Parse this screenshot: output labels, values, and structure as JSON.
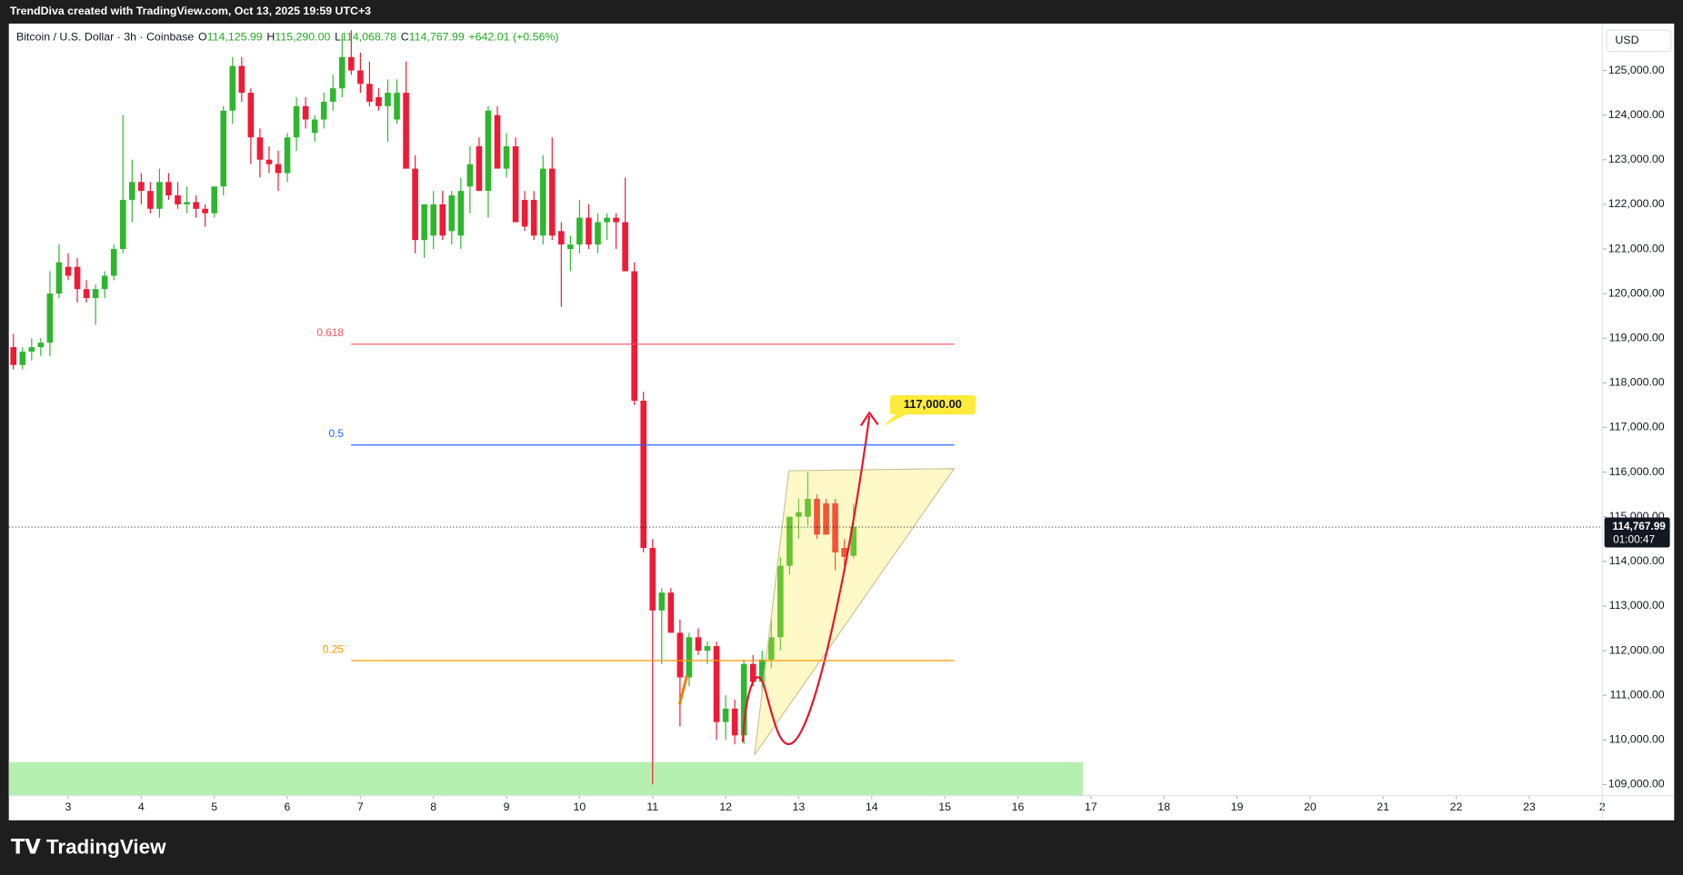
{
  "watermark": "TrendDiva created with TradingView.com, Oct 13, 2025 19:59 UTC+3",
  "footer_logo": "TradingView",
  "chart_data": {
    "type": "candlestick",
    "symbol": "Bitcoin / U.S. Dollar · 3h · Coinbase",
    "ohlc_legend": [
      {
        "key": "O",
        "value": "114,125.99"
      },
      {
        "key": "H",
        "value": "115,290.00"
      },
      {
        "key": "L",
        "value": "114,068.78"
      },
      {
        "key": "C",
        "value": "114,767.99"
      }
    ],
    "change": "+642.01 (+0.56%)",
    "currency": "USD",
    "up_color": "#2fb62f",
    "down_color": "#ef1a37",
    "open": [
      118800,
      118400,
      118700,
      118800,
      118900,
      120000,
      120600,
      120600,
      120100,
      119900,
      120100,
      120400,
      121000,
      122100,
      122500,
      122300,
      121900,
      122500,
      122200,
      122000,
      122050,
      121900,
      121800,
      122400,
      124100,
      125100,
      124500,
      123500,
      123000,
      122900,
      122700,
      123500,
      124200,
      123600,
      123900,
      124300,
      124600,
      125300,
      125000,
      124700,
      124400,
      124200,
      123900,
      124500,
      122800,
      121200,
      121300,
      122000,
      121400,
      121300,
      122400,
      123300,
      122300,
      124000,
      122800,
      123300,
      122100,
      122100,
      121300,
      122800,
      121400,
      121000,
      121100,
      121700,
      121100,
      121600,
      121700,
      121600,
      120500,
      117600,
      114300,
      112900,
      113300,
      112400,
      111400,
      112300,
      112000,
      112100,
      110400,
      110700,
      110100,
      111700,
      111300,
      111800,
      112300,
      113900,
      115000,
      115000,
      115400,
      115300,
      115300,
      114300,
      114125.99
    ],
    "high": [
      119100,
      118800,
      119000,
      119000,
      120500,
      121100,
      120900,
      120800,
      120300,
      120200,
      120500,
      121100,
      124000,
      123000,
      122700,
      122500,
      122800,
      122700,
      122500,
      122400,
      122200,
      122000,
      122400,
      124200,
      125300,
      125300,
      124600,
      123700,
      123300,
      123200,
      123600,
      124400,
      124400,
      124000,
      124500,
      124900,
      125800,
      125900,
      125400,
      125200,
      124600,
      124800,
      124800,
      125200,
      123100,
      122000,
      122300,
      122300,
      122300,
      122600,
      123300,
      123500,
      124200,
      124200,
      123600,
      123500,
      122300,
      122300,
      123100,
      123500,
      121600,
      121300,
      122100,
      122000,
      121800,
      121800,
      121800,
      122600,
      120700,
      117800,
      114500,
      113400,
      113400,
      112700,
      112400,
      112500,
      112200,
      112200,
      111000,
      110900,
      111800,
      111900,
      112000,
      112700,
      114100,
      115000,
      115400,
      116000,
      115500,
      115400,
      115400,
      114500,
      115290
    ],
    "low": [
      118300,
      118300,
      118500,
      118600,
      118600,
      119900,
      120300,
      119800,
      119800,
      119300,
      119900,
      120300,
      120900,
      121600,
      122000,
      121800,
      121700,
      122100,
      121900,
      121800,
      121700,
      121500,
      121700,
      122200,
      123800,
      124300,
      122900,
      122600,
      122700,
      122300,
      122500,
      123200,
      123700,
      123400,
      123700,
      124100,
      124400,
      124900,
      124500,
      124200,
      124100,
      123400,
      123800,
      122800,
      120900,
      120800,
      121000,
      121200,
      121100,
      121000,
      121800,
      122300,
      121700,
      122800,
      122600,
      121600,
      121400,
      121200,
      121100,
      121200,
      119700,
      120500,
      120900,
      121000,
      120900,
      121200,
      121000,
      120500,
      117500,
      114200,
      109000,
      111700,
      112400,
      110300,
      111200,
      111900,
      111700,
      110000,
      110000,
      109900,
      109900,
      111200,
      111100,
      111600,
      112000,
      113700,
      114500,
      114800,
      114500,
      114600,
      113800,
      113900,
      114068.78
    ],
    "close": [
      118400,
      118700,
      118800,
      118900,
      120000,
      120700,
      120400,
      120100,
      119900,
      120100,
      120400,
      121000,
      122100,
      122500,
      122300,
      121900,
      122500,
      122200,
      122000,
      122050,
      121900,
      121800,
      122400,
      124100,
      125100,
      124500,
      123500,
      123000,
      122900,
      122700,
      123500,
      124200,
      123900,
      123900,
      124300,
      124600,
      125300,
      125000,
      124700,
      124300,
      124200,
      124500,
      124500,
      122800,
      121200,
      122000,
      122000,
      121300,
      122200,
      122300,
      122900,
      122300,
      124100,
      122800,
      123300,
      121600,
      121500,
      121300,
      122800,
      121300,
      121100,
      121100,
      121700,
      121100,
      121600,
      121700,
      121600,
      120500,
      117600,
      114300,
      112900,
      113300,
      112400,
      111400,
      112300,
      112000,
      112100,
      110400,
      110700,
      110100,
      111700,
      111300,
      111800,
      112300,
      113900,
      115000,
      115100,
      115400,
      114600,
      114600,
      114200,
      114100,
      114767.99
    ],
    "xlim": [
      -0.5,
      174
    ],
    "xticks": [
      {
        "value": 6,
        "label": "3"
      },
      {
        "value": 14,
        "label": "4"
      },
      {
        "value": 22,
        "label": "5"
      },
      {
        "value": 30,
        "label": "6"
      },
      {
        "value": 38,
        "label": "7"
      },
      {
        "value": 46,
        "label": "8"
      },
      {
        "value": 54,
        "label": "9"
      },
      {
        "value": 62,
        "label": "10"
      },
      {
        "value": 70,
        "label": "11"
      },
      {
        "value": 78,
        "label": "12"
      },
      {
        "value": 86,
        "label": "13"
      },
      {
        "value": 94,
        "label": "14"
      },
      {
        "value": 102,
        "label": "15"
      },
      {
        "value": 110,
        "label": "16"
      },
      {
        "value": 118,
        "label": "17"
      },
      {
        "value": 126,
        "label": "18"
      },
      {
        "value": 134,
        "label": "19"
      },
      {
        "value": 142,
        "label": "20"
      },
      {
        "value": 150,
        "label": "21"
      },
      {
        "value": 158,
        "label": "22"
      },
      {
        "value": 166,
        "label": "23"
      },
      {
        "value": 174,
        "label": "2"
      }
    ],
    "ylim": [
      108750,
      126050
    ],
    "yticks": [
      {
        "value": 109000,
        "label": "109,000.00"
      },
      {
        "value": 110000,
        "label": "110,000.00"
      },
      {
        "value": 111000,
        "label": "111,000.00"
      },
      {
        "value": 112000,
        "label": "112,000.00"
      },
      {
        "value": 113000,
        "label": "113,000.00"
      },
      {
        "value": 114000,
        "label": "114,000.00"
      },
      {
        "value": 115000,
        "label": "115,000.00"
      },
      {
        "value": 116000,
        "label": "116,000.00"
      },
      {
        "value": 117000,
        "label": "117,000.00"
      },
      {
        "value": 118000,
        "label": "118,000.00"
      },
      {
        "value": 119000,
        "label": "119,000.00"
      },
      {
        "value": 120000,
        "label": "120,000.00"
      },
      {
        "value": 121000,
        "label": "121,000.00"
      },
      {
        "value": 122000,
        "label": "122,000.00"
      },
      {
        "value": 123000,
        "label": "123,000.00"
      },
      {
        "value": 124000,
        "label": "124,000.00"
      },
      {
        "value": 125000,
        "label": "125,000.00"
      }
    ],
    "last_price": {
      "value": 114767.99,
      "label": "114,767.99",
      "countdown": "01:00:47"
    },
    "fib_levels": [
      {
        "label": "0.618",
        "price": 118866,
        "color": "#f7525f"
      },
      {
        "label": "0.5",
        "price": 116607,
        "color": "#2962ff"
      },
      {
        "label": "0.25",
        "price": 111777,
        "color": "#ff9800"
      }
    ],
    "target": {
      "label": "117,000.00",
      "value": 117000
    },
    "support_zone_top": 109500,
    "support_zone_color": "#b5f0b0"
  }
}
